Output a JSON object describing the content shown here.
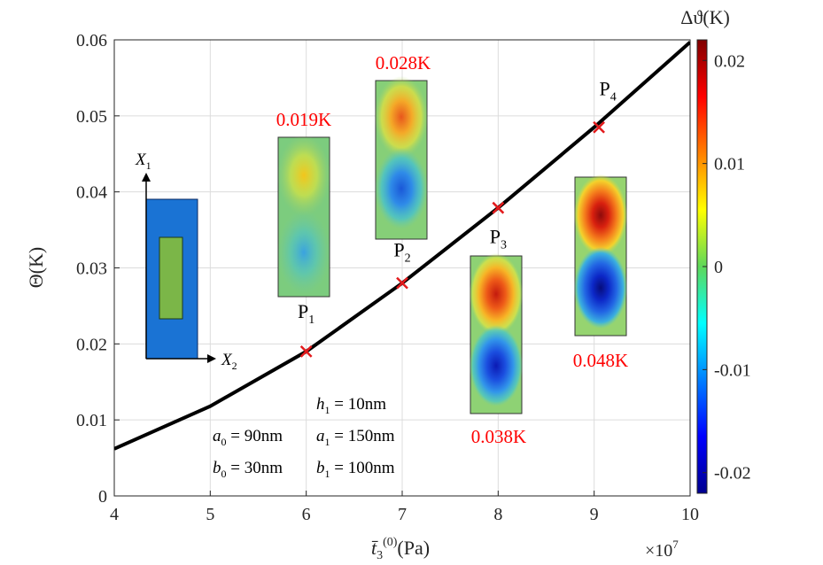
{
  "chart_data": {
    "type": "line",
    "ylabel": "Θ(K)",
    "xlabel": "t̄₃⁽⁰⁾(Pa)",
    "x_multiplier": "×10⁷",
    "xlim": [
      4,
      10
    ],
    "ylim": [
      0,
      0.06
    ],
    "x_ticks": [
      4,
      5,
      6,
      7,
      8,
      9,
      10
    ],
    "x_tick_labels": [
      "4",
      "5",
      "6",
      "7",
      "8",
      "9",
      "10"
    ],
    "y_ticks": [
      0,
      0.01,
      0.02,
      0.03,
      0.04,
      0.05,
      0.06
    ],
    "y_tick_labels": [
      "0",
      "0.01",
      "0.02",
      "0.03",
      "0.04",
      "0.05",
      "0.06"
    ],
    "grid": true,
    "series": [
      {
        "color": "#000000",
        "x": [
          4,
          5,
          6,
          7,
          8,
          9,
          10
        ],
        "y": [
          0.0062,
          0.0118,
          0.019,
          0.028,
          0.0379,
          0.0485,
          0.0597
        ]
      }
    ],
    "markers": [
      {
        "label": "P",
        "sub": "1",
        "x": 6,
        "y": 0.019,
        "delta": "0.019K"
      },
      {
        "label": "P",
        "sub": "2",
        "x": 7,
        "y": 0.028,
        "delta": "0.028K"
      },
      {
        "label": "P",
        "sub": "3",
        "x": 8,
        "y": 0.0379,
        "delta": "0.038K"
      },
      {
        "label": "P",
        "sub": "4",
        "x": 9.05,
        "y": 0.0485,
        "delta": "0.048K"
      }
    ],
    "marker_color": "#e31a1c",
    "annotation_color": "#ff0000",
    "parameters": [
      {
        "sym": "h",
        "sub": "1",
        "val": "10nm"
      },
      {
        "sym": "a",
        "sub": "0",
        "val": "90nm"
      },
      {
        "sym": "a",
        "sub": "1",
        "val": "150nm"
      },
      {
        "sym": "b",
        "sub": "0",
        "val": "30nm"
      },
      {
        "sym": "b",
        "sub": "1",
        "val": "100nm"
      }
    ],
    "inset_axes": {
      "x": "X",
      "x_sub": "2",
      "y": "X",
      "y_sub": "1"
    },
    "colorbar": {
      "label": "Δϑ(K)",
      "range": [
        -0.022,
        0.022
      ],
      "ticks": [
        -0.02,
        -0.01,
        0,
        0.01,
        0.02
      ],
      "tick_labels": [
        "-0.02",
        "-0.01",
        "0",
        "0.01",
        "0.02"
      ],
      "colormap": "jet"
    }
  }
}
